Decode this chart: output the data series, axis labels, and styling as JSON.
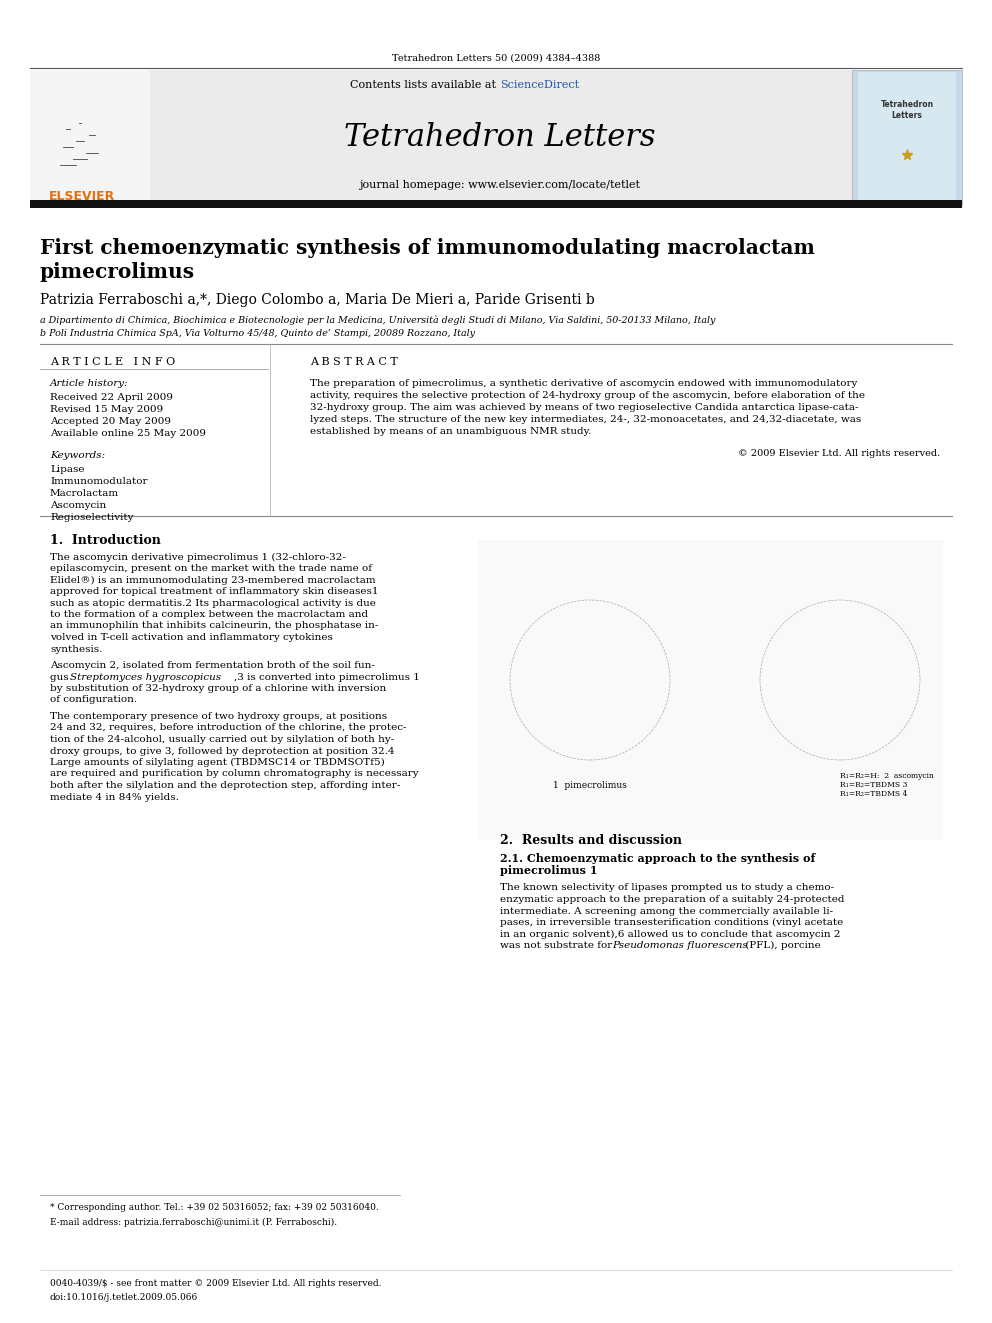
{
  "page_title": "Tetrahedron Letters 50 (2009) 4384–4388",
  "journal_name": "Tetrahedron Letters",
  "contents_line": "Contents lists available at ScienceDirect",
  "journal_homepage": "journal homepage: www.elsevier.com/locate/tetlet",
  "elsevier_text": "ELSEVIER",
  "paper_title_line1": "First chemoenzymatic synthesis of immunomodulating macrolactam",
  "paper_title_line2": "pimecrolimus",
  "authors": "Patrizia Ferraboschi a,*, Diego Colombo a, Maria De Mieri a, Paride Grisenti b",
  "affil_a": "a Dipartimento di Chimica, Biochimica e Biotecnologie per la Medicina, Università degli Studi di Milano, Via Saldini, 50-20133 Milano, Italy",
  "affil_b": "b Poli Industria Chimica SpA, Via Volturno 45/48, Quinto de’ Stampi, 20089 Rozzano, Italy",
  "article_info_header": "A R T I C L E   I N F O",
  "abstract_header": "A B S T R A C T",
  "article_history_label": "Article history:",
  "received": "Received 22 April 2009",
  "revised": "Revised 15 May 2009",
  "accepted": "Accepted 20 May 2009",
  "available": "Available online 25 May 2009",
  "keywords_label": "Keywords:",
  "keywords": [
    "Lipase",
    "Immunomodulator",
    "Macrolactam",
    "Ascomycin",
    "Regioselectivity"
  ],
  "abstract_lines": [
    "The preparation of pimecrolimus, a synthetic derivative of ascomycin endowed with immunomodulatory",
    "activity, requires the selective protection of 24-hydroxy group of the ascomycin, before elaboration of the",
    "32-hydroxy group. The aim was achieved by means of two regioselective Candida antarctica lipase-cata-",
    "lyzed steps. The structure of the new key intermediates, 24-, 32-monoacetates, and 24,32-diacetate, was",
    "established by means of an unambiguous NMR study."
  ],
  "copyright": "© 2009 Elsevier Ltd. All rights reserved.",
  "intro_header": "1.  Introduction",
  "intro_para1": [
    "The ascomycin derivative pimecrolimus 1 (32-chloro-32-",
    "epilascomycin, present on the market with the trade name of",
    "Elidel®) is an immunomodulating 23-membered macrolactam",
    "approved for topical treatment of inflammatory skin diseases1",
    "such as atopic dermatitis.2 Its pharmacological activity is due",
    "to the formation of a complex between the macrolactam and",
    "an immunophilin that inhibits calcineurin, the phosphatase in-",
    "volved in T-cell activation and inflammatory cytokines",
    "synthesis."
  ],
  "intro_para2": [
    "Ascomycin 2, isolated from fermentation broth of the soil fun-",
    "gus Streptomyces hygroscopicus,3 is converted into pimecrolimus 1",
    "by substitution of 32-hydroxy group of a chlorine with inversion",
    "of configuration."
  ],
  "intro_para3": [
    "The contemporary presence of two hydroxy groups, at positions",
    "24 and 32, requires, before introduction of the chlorine, the protec-",
    "tion of the 24-alcohol, usually carried out by silylation of both hy-",
    "droxy groups, to give 3, followed by deprotection at position 32.4",
    "Large amounts of silylating agent (TBDMSC14 or TBDMSOTf5)",
    "are required and purification by column chromatography is necessary",
    "both after the silylation and the deprotection step, affording inter-",
    "mediate 4 in 84% yields."
  ],
  "results_header": "2.  Results and discussion",
  "results_subheader1": "2.1. Chemoenzymatic approach to the synthesis of",
  "results_subheader2": "pimecrolimus 1",
  "results_para1": [
    "The known selectivity of lipases prompted us to study a chemo-",
    "enzymatic approach to the preparation of a suitably 24-protected",
    "intermediate. A screening among the commercially available li-",
    "pases, in irreversible transesterification conditions (vinyl acetate",
    "in an organic solvent),6 allowed us to conclude that ascomycin 2",
    "was not substrate for Pseudomonas fluorescens (PFL), porcine"
  ],
  "footnote_line1": "* Corresponding author. Tel.: +39 02 50316052; fax: +39 02 50316040.",
  "footnote_line2": "E-mail address: patrizia.ferraboschi@unimi.it (P. Ferraboschi).",
  "footer_line1": "0040-4039/$ - see front matter © 2009 Elsevier Ltd. All rights reserved.",
  "footer_line2": "doi:10.1016/j.tetlet.2009.05.066",
  "bg_color": "#ffffff",
  "header_bg": "#e8e8e8",
  "orange_color": "#e07010",
  "blue_link_color": "#2255aa",
  "black_color": "#000000",
  "dark_bar_color": "#111111"
}
